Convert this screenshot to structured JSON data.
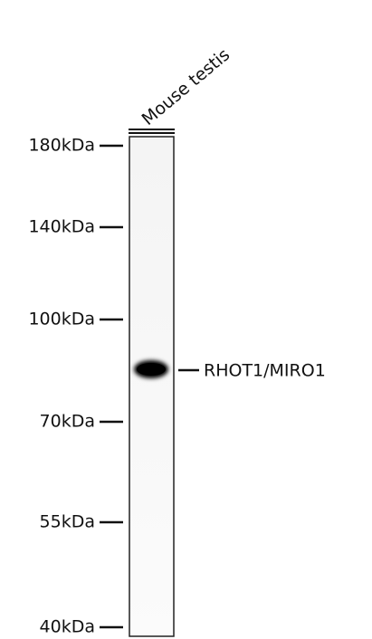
{
  "lane": {
    "label": "Mouse testis"
  },
  "markers": [
    {
      "label": "180kDa"
    },
    {
      "label": "140kDa"
    },
    {
      "label": "100kDa"
    },
    {
      "label": "70kDa"
    },
    {
      "label": "55kDa"
    },
    {
      "label": "40kDa"
    }
  ],
  "band": {
    "label": "RHOT1/MIRO1"
  }
}
